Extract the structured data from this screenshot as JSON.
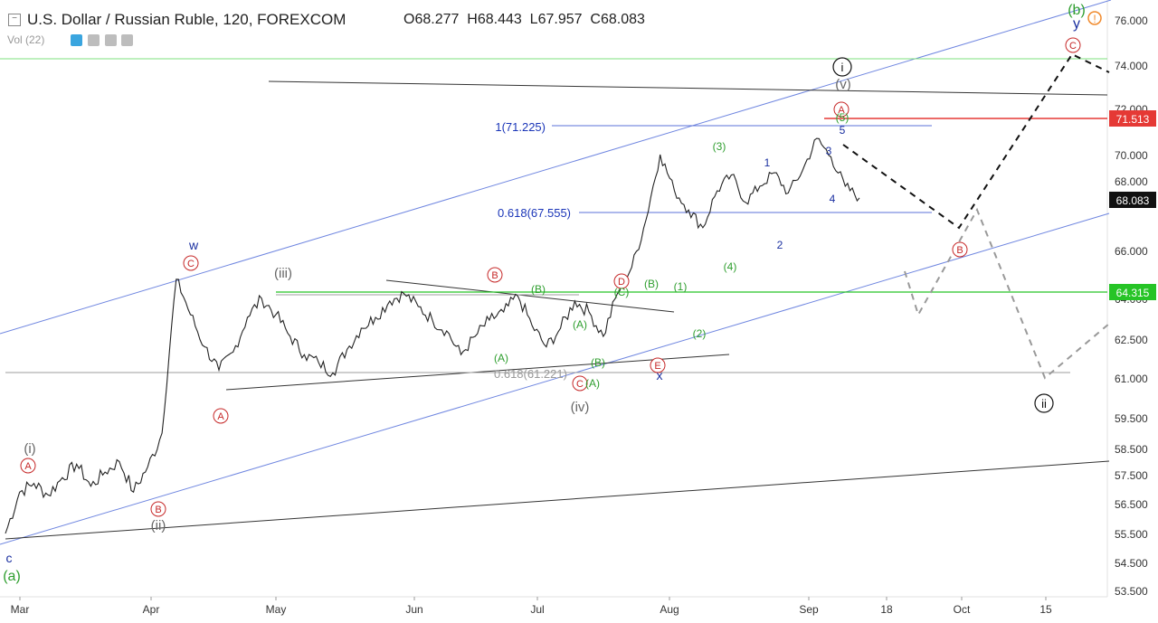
{
  "header": {
    "symbol_title": "U.S. Dollar / Russian Ruble, 120, FOREXCOM",
    "open_label": "O",
    "open": "68.277",
    "high_label": "H",
    "high": "68.443",
    "low_label": "L",
    "low": "67.957",
    "close_label": "C",
    "close": "68.083",
    "volume_label": "Vol (22)"
  },
  "chart_data": {
    "type": "line",
    "title": "U.S. Dollar / Russian Ruble, 120, FOREXCOM",
    "y_ticks": [
      "76.000",
      "74.000",
      "72.000",
      "70.000",
      "68.000",
      "66.000",
      "64.000",
      "62.500",
      "61.000",
      "59.500",
      "58.500",
      "57.500",
      "56.500",
      "55.500",
      "54.500",
      "53.500"
    ],
    "x_ticks": [
      "Mar",
      "Apr",
      "May",
      "Jun",
      "Jul",
      "Aug",
      "Sep",
      "18",
      "Oct",
      "15"
    ],
    "price_tags": [
      {
        "value": "71.513",
        "color": "#e53935"
      },
      {
        "value": "68.083",
        "color": "#111111"
      },
      {
        "value": "64.315",
        "color": "#26c426"
      }
    ],
    "fib_labels": [
      {
        "text": "1(71.225)",
        "color": "#1a35b8"
      },
      {
        "text": "0.618(67.555)",
        "color": "#1a35b8"
      },
      {
        "text": "0.618(61.221)",
        "color": "#999999"
      }
    ],
    "wave_labels": {
      "circled_red": [
        "A",
        "B",
        "C",
        "A",
        "B",
        "D",
        "E",
        "A",
        "C",
        "B",
        "C"
      ],
      "roman": [
        "(i)",
        "(ii)",
        "(iii)",
        "(iv)",
        "(v)"
      ],
      "green": [
        "(a)",
        "(b)",
        "(1)",
        "(2)",
        "(3)",
        "(4)",
        "(5)",
        "(A)",
        "(B)",
        "(C)"
      ],
      "blue": [
        "c",
        "w",
        "x",
        "y",
        "1",
        "2",
        "3",
        "4",
        "5"
      ],
      "circled_black": [
        "i",
        "ii"
      ]
    },
    "series": [
      {
        "values": [
          55.5,
          56.9,
          57.2,
          56.8,
          57.4,
          57.9,
          57.1,
          57.6,
          58.0,
          56.9,
          57.8,
          59.0,
          64.8,
          63.4,
          62.2,
          61.3,
          62.0,
          63.3,
          64.0,
          63.4,
          62.6,
          61.9,
          61.6,
          61.2,
          62.1,
          62.9,
          63.3,
          63.9,
          64.2,
          63.7,
          63.2,
          62.8,
          61.9,
          62.6,
          63.2,
          63.5,
          64.1,
          63.0,
          62.2,
          62.9,
          63.9,
          63.5,
          62.6,
          64.2,
          65.3,
          67.2,
          70.0,
          68.4,
          67.6,
          66.9,
          68.4,
          69.1,
          67.9,
          68.6,
          69.2,
          68.3,
          69.3,
          70.7,
          69.9,
          68.6,
          68.083
        ]
      }
    ]
  }
}
